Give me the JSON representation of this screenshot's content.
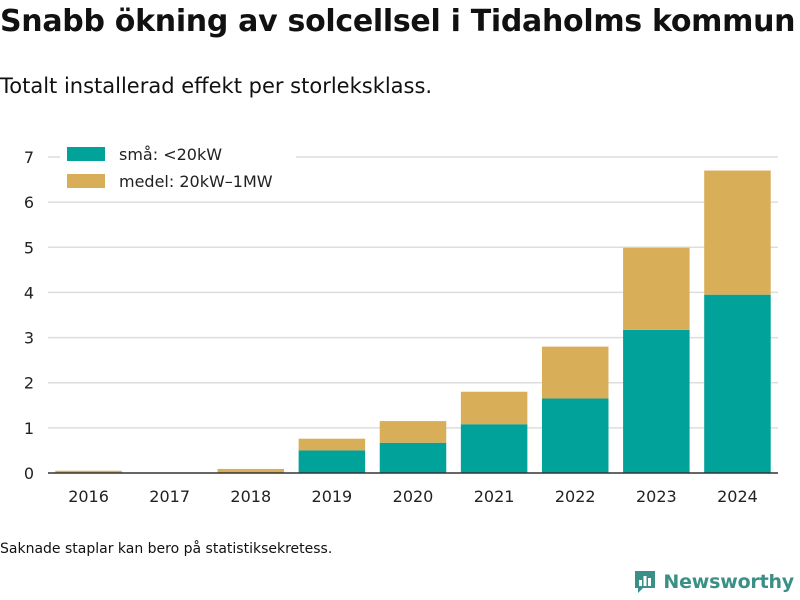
{
  "header": {
    "title": "Snabb ökning av solcellsel i Tidaholms kommun",
    "subtitle": "Totalt installerad effekt per storleksklass."
  },
  "footer": {
    "note": "Saknade staplar kan bero på statistiksekretess.",
    "brand": "Newsworthy"
  },
  "colors": {
    "small": "#00a29a",
    "medium": "#d9ae58",
    "grid": "#dddddd",
    "axis": "#333333",
    "brand": "#3a8f86"
  },
  "chart_data": {
    "type": "bar",
    "stacked": true,
    "categories": [
      "2016",
      "2017",
      "2018",
      "2019",
      "2020",
      "2021",
      "2022",
      "2023",
      "2024"
    ],
    "series": [
      {
        "name": "små: <20kW",
        "values": [
          0.0,
          0.0,
          0.0,
          0.5,
          0.67,
          1.08,
          1.65,
          3.17,
          3.95
        ]
      },
      {
        "name": "medel: 20kW–1MW",
        "values": [
          0.05,
          0.0,
          0.09,
          0.26,
          0.48,
          0.72,
          1.15,
          1.82,
          2.75
        ]
      }
    ],
    "ylim": [
      0,
      7
    ],
    "yticks": [
      0,
      1,
      2,
      3,
      4,
      5,
      6,
      7
    ],
    "grid": true,
    "legend": "top-left"
  }
}
